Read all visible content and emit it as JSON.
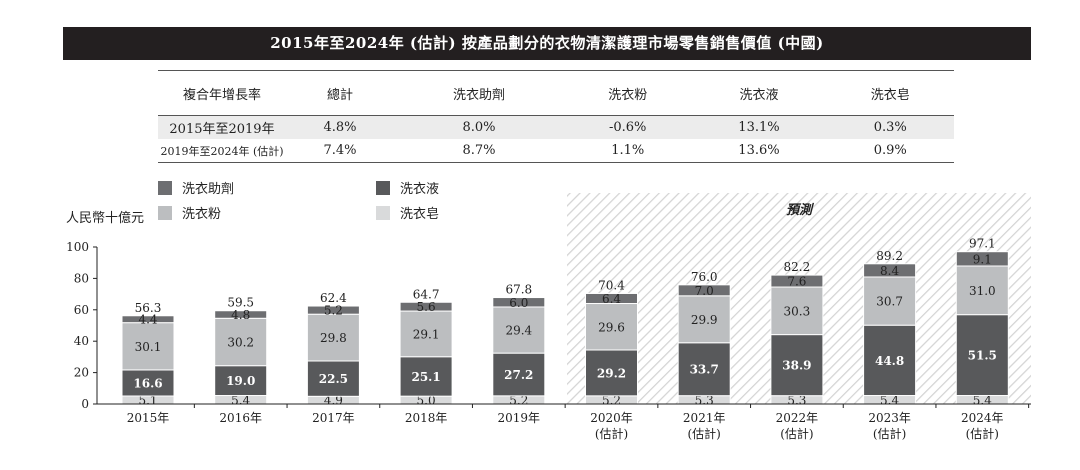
{
  "title": "2015年至2024年 (估計) 按產品劃分的衣物清潔護理市場零售銷售價值 (中國)",
  "cagr_table": {
    "header": [
      "複合年增長率",
      "總計",
      "洗衣助劑",
      "洗衣粉",
      "洗衣液",
      "洗衣皂"
    ],
    "rows": [
      [
        "2015年至2019年",
        "4.8%",
        "8.0%",
        "-0.6%",
        "13.1%",
        "0.3%"
      ],
      [
        "2019年至2024年 (估計)",
        "7.4%",
        "8.7%",
        "1.1%",
        "13.6%",
        "0.9%"
      ]
    ]
  },
  "legend": {
    "additives": "洗衣助劑",
    "liquid": "洗衣液",
    "powder": "洗衣粉",
    "soap": "洗衣皂"
  },
  "colors": {
    "additives": "#6d6e71",
    "liquid": "#58595b",
    "powder": "#bcbec0",
    "soap": "#d9dadb",
    "title_bg": "#231f20"
  },
  "chart_data": {
    "type": "bar",
    "stacked": true,
    "ylabel": "人民幣十億元",
    "ylim": [
      0,
      100
    ],
    "yticks": [
      "0",
      "20",
      "40",
      "60",
      "80",
      "100"
    ],
    "forecast_label": "預測",
    "categories": [
      [
        "2015年"
      ],
      [
        "2016年"
      ],
      [
        "2017年"
      ],
      [
        "2018年"
      ],
      [
        "2019年"
      ],
      [
        "2020年",
        "(估計)"
      ],
      [
        "2021年",
        "(估計)"
      ],
      [
        "2022年",
        "(估計)"
      ],
      [
        "2023年",
        "(估計)"
      ],
      [
        "2024年",
        "(估計)"
      ]
    ],
    "forecast_start_index": 5,
    "series": [
      {
        "key": "soap",
        "name": "洗衣皂",
        "values": [
          5.1,
          5.4,
          4.9,
          5.0,
          5.2,
          5.2,
          5.3,
          5.3,
          5.4,
          5.4
        ]
      },
      {
        "key": "liquid",
        "name": "洗衣液",
        "values": [
          16.6,
          19.0,
          22.5,
          25.1,
          27.2,
          29.2,
          33.7,
          38.9,
          44.8,
          51.5
        ]
      },
      {
        "key": "powder",
        "name": "洗衣粉",
        "values": [
          30.1,
          30.2,
          29.8,
          29.1,
          29.4,
          29.6,
          29.9,
          30.3,
          30.7,
          31.0
        ]
      },
      {
        "key": "additives",
        "name": "洗衣助劑",
        "values": [
          4.4,
          4.8,
          5.2,
          5.6,
          6.0,
          6.4,
          7.0,
          7.6,
          8.4,
          9.1
        ]
      }
    ],
    "totals": [
      56.3,
      59.5,
      62.4,
      64.7,
      67.8,
      70.4,
      76.0,
      82.2,
      89.2,
      97.1
    ]
  }
}
